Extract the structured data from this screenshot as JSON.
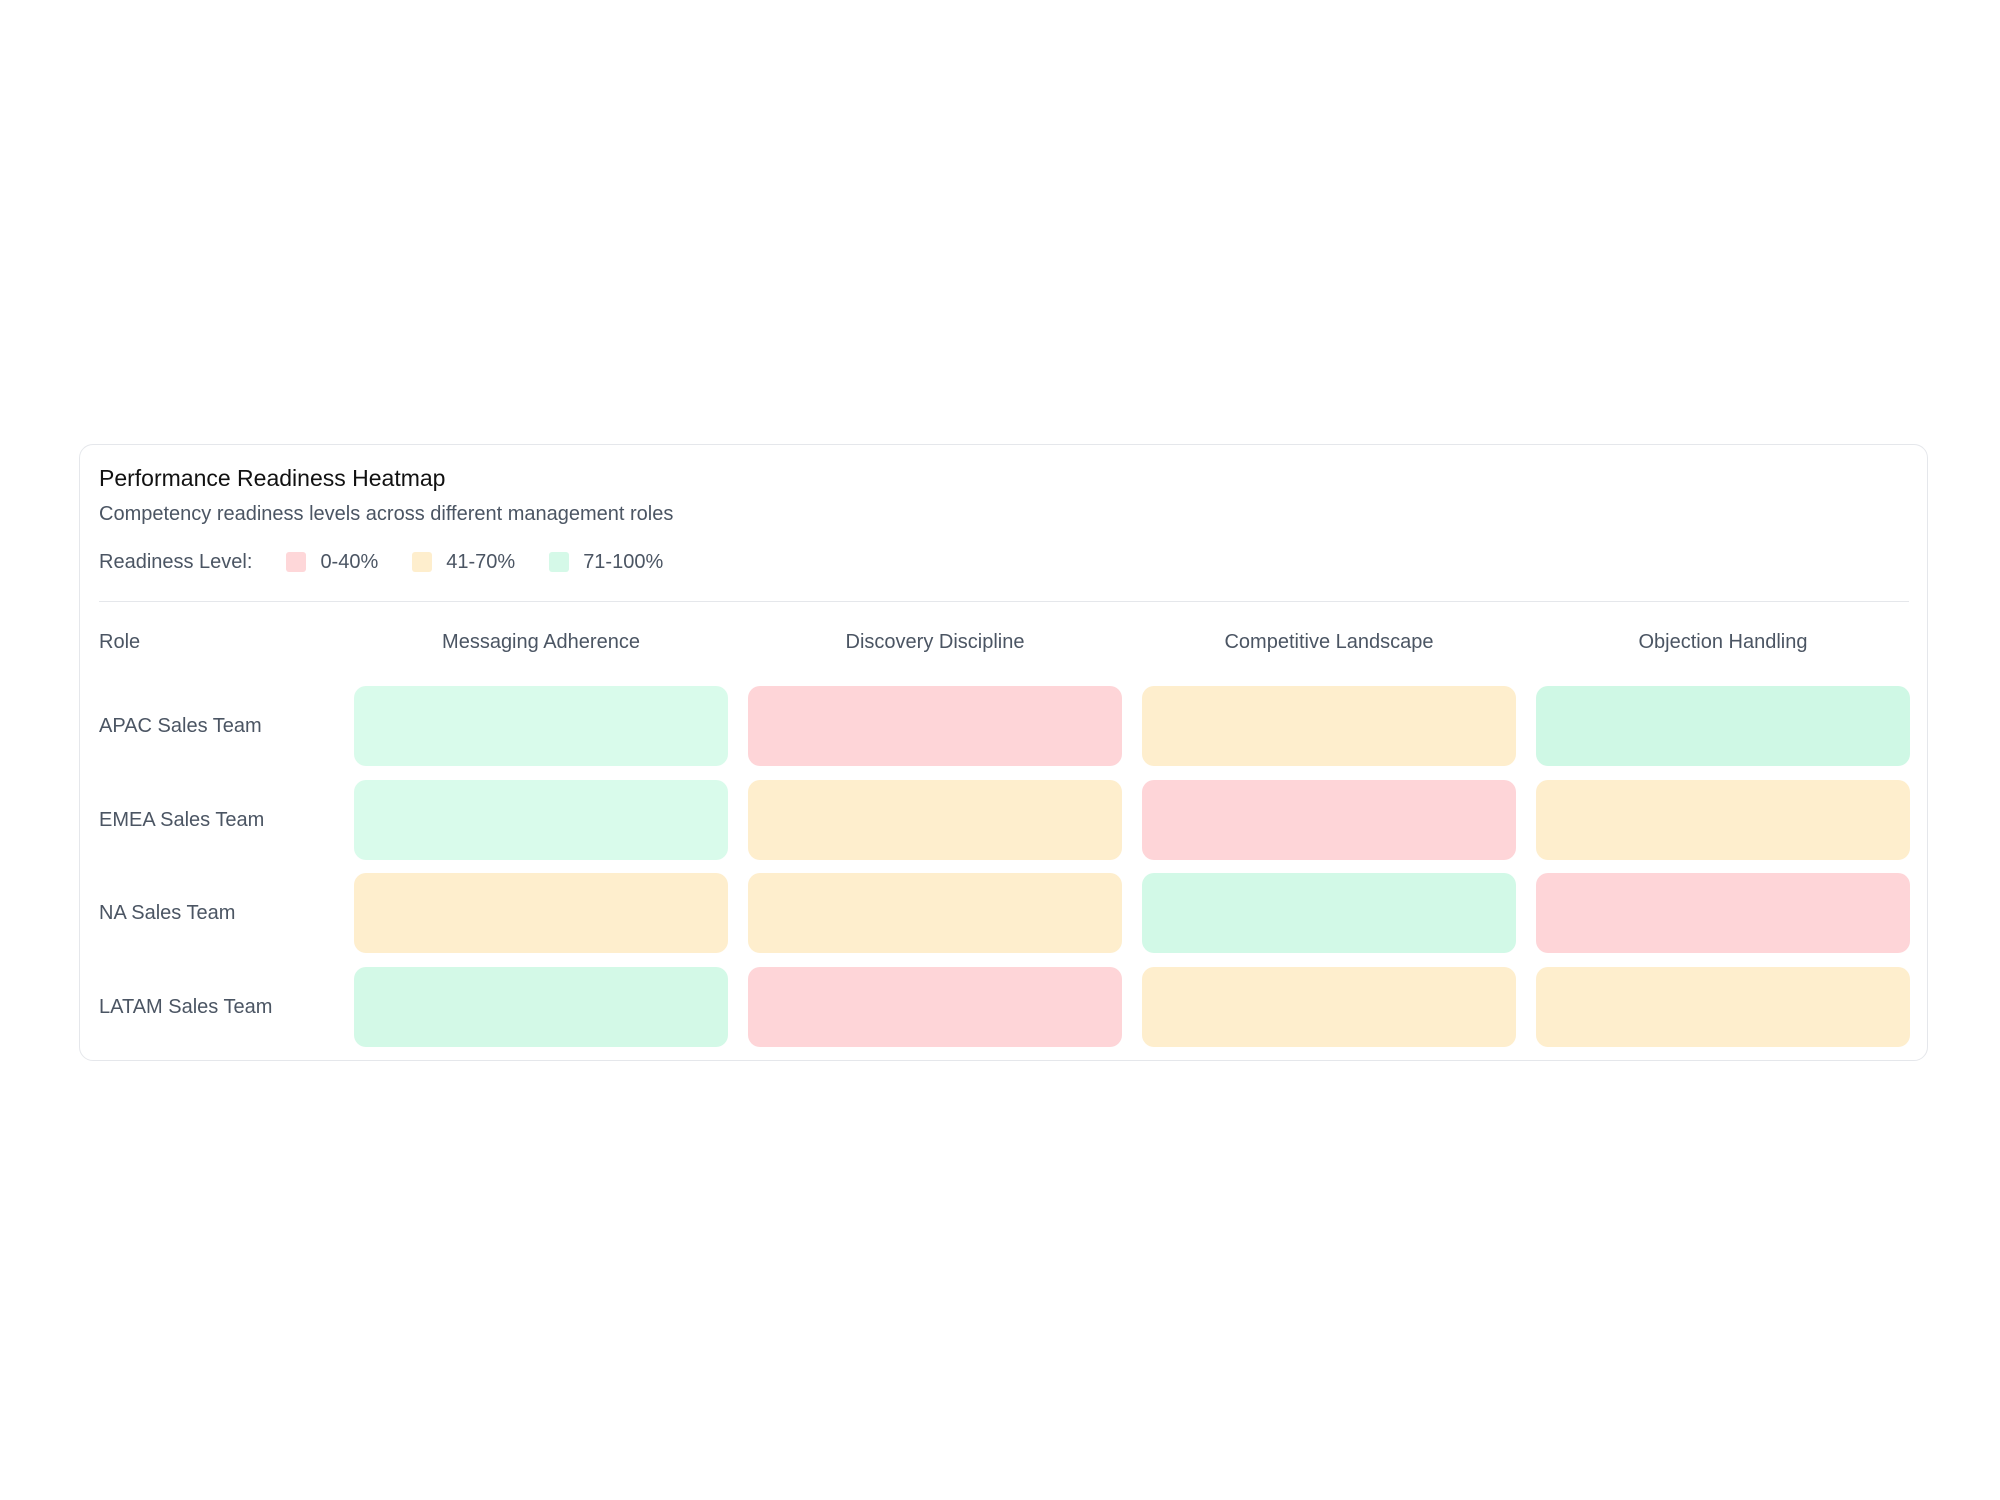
{
  "title": "Performance Readiness Heatmap",
  "subtitle": "Competency readiness levels across different management roles",
  "legend": {
    "label": "Readiness Level:",
    "items": [
      {
        "label": "0-40%",
        "color": "#fed7d9"
      },
      {
        "label": "41-70%",
        "color": "#feeecd"
      },
      {
        "label": "71-100%",
        "color": "#d5f9e8"
      }
    ]
  },
  "chart_data": {
    "type": "heatmap",
    "row_header": "Role",
    "columns": [
      "Messaging Adherence",
      "Discovery Discipline",
      "Competitive Landscape",
      "Objection Handling"
    ],
    "rows": [
      "APAC Sales Team",
      "EMEA Sales Team",
      "NA Sales Team",
      "LATAM Sales Team"
    ],
    "levels": [
      [
        "71-100%",
        "0-40%",
        "41-70%",
        "71-100%"
      ],
      [
        "71-100%",
        "41-70%",
        "0-40%",
        "41-70%"
      ],
      [
        "41-70%",
        "41-70%",
        "71-100%",
        "0-40%"
      ],
      [
        "71-100%",
        "0-40%",
        "41-70%",
        "41-70%"
      ]
    ],
    "cell_colors": [
      [
        "#d9fbeb",
        "#fed5d8",
        "#feeecd",
        "#cff8e5"
      ],
      [
        "#d9fbeb",
        "#feeecd",
        "#fed5d8",
        "#feeecd"
      ],
      [
        "#feeecd",
        "#feeecd",
        "#d2f9e7",
        "#fed5d8"
      ],
      [
        "#d3f9e7",
        "#fed5d8",
        "#feeecd",
        "#feeecd"
      ]
    ]
  }
}
